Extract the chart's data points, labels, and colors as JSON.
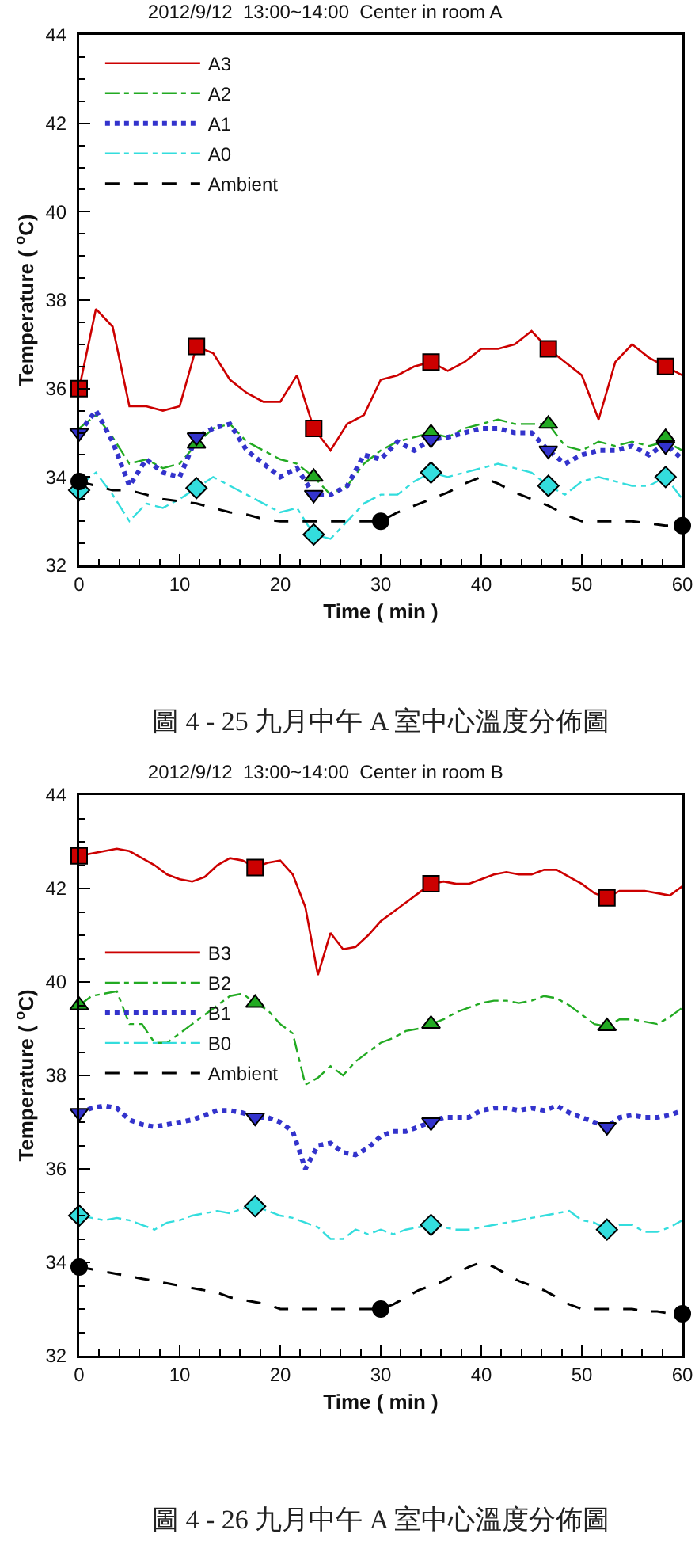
{
  "chart_data": [
    {
      "type": "line",
      "title": "2012/9/12  13:00~14:00  Center in room A",
      "xlabel": "Time ( min )",
      "ylabel": "Temperature ( $^{o}$C)",
      "x": [
        0,
        1.67,
        3.33,
        5,
        6.67,
        8.33,
        10,
        11.67,
        13.33,
        15,
        16.67,
        18.33,
        20,
        21.67,
        23.33,
        25,
        26.67,
        28.33,
        30,
        31.67,
        33.33,
        35,
        36.67,
        38.33,
        40,
        41.67,
        43.33,
        45,
        46.67,
        48.33,
        50,
        51.67,
        53.33,
        55,
        56.67,
        58.33,
        60
      ],
      "series": [
        {
          "name": "A3",
          "color": "#cc0000",
          "line_style": "solid",
          "values": [
            36.0,
            37.8,
            37.4,
            35.6,
            35.6,
            35.5,
            35.6,
            36.95,
            36.8,
            36.2,
            35.9,
            35.7,
            35.7,
            36.3,
            35.1,
            34.6,
            35.2,
            35.4,
            36.2,
            36.3,
            36.5,
            36.6,
            36.4,
            36.6,
            36.9,
            36.9,
            37.0,
            37.3,
            36.9,
            36.6,
            36.3,
            35.3,
            36.6,
            37.0,
            36.7,
            36.5,
            36.3
          ]
        },
        {
          "name": "A2",
          "color": "#22aa22",
          "line_style": "dashdot",
          "values": [
            35.1,
            35.4,
            34.9,
            34.3,
            34.4,
            34.2,
            34.3,
            34.75,
            35.1,
            35.2,
            34.8,
            34.6,
            34.4,
            34.3,
            34.0,
            33.6,
            33.8,
            34.3,
            34.6,
            34.8,
            34.9,
            35.0,
            34.9,
            35.1,
            35.2,
            35.3,
            35.2,
            35.2,
            35.2,
            34.7,
            34.6,
            34.8,
            34.7,
            34.8,
            34.7,
            34.8,
            34.6
          ]
        },
        {
          "name": "A1",
          "color": "#3333cc",
          "line_style": "dotted",
          "values": [
            35.0,
            35.5,
            34.8,
            33.8,
            34.4,
            34.1,
            34.0,
            34.9,
            35.1,
            35.2,
            34.6,
            34.3,
            34.0,
            34.2,
            33.6,
            33.6,
            33.8,
            34.5,
            34.4,
            34.8,
            34.6,
            34.85,
            34.9,
            35.0,
            35.1,
            35.1,
            35.0,
            35.0,
            34.6,
            34.3,
            34.5,
            34.6,
            34.6,
            34.7,
            34.5,
            34.75,
            34.4
          ]
        },
        {
          "name": "A0",
          "color": "#33dddd",
          "line_style": "dashdot",
          "values": [
            33.8,
            34.1,
            33.6,
            33.0,
            33.4,
            33.3,
            33.5,
            33.75,
            34.0,
            33.8,
            33.6,
            33.4,
            33.2,
            33.3,
            32.7,
            32.6,
            33.0,
            33.4,
            33.6,
            33.6,
            33.9,
            34.1,
            34.0,
            34.1,
            34.2,
            34.3,
            34.2,
            34.1,
            33.8,
            33.6,
            33.9,
            34.0,
            33.9,
            33.8,
            33.8,
            34.0,
            33.5
          ]
        },
        {
          "name": "Ambient",
          "color": "#000000",
          "line_style": "dashed",
          "values": [
            33.9,
            33.8,
            33.7,
            33.7,
            33.6,
            33.5,
            33.45,
            33.4,
            33.3,
            33.2,
            33.15,
            33.05,
            33.0,
            33.0,
            33.0,
            33.0,
            33.0,
            33.0,
            33.0,
            33.2,
            33.35,
            33.5,
            33.65,
            33.85,
            34.0,
            33.85,
            33.65,
            33.5,
            33.35,
            33.15,
            33.0,
            33.0,
            33.0,
            33.0,
            32.95,
            32.9,
            32.9
          ]
        },
        {
          "type": "scatter",
          "color": "#cc0000",
          "marker": "square",
          "x": [
            0,
            11.67,
            23.33,
            35,
            46.67,
            58.33
          ],
          "values": [
            36.0,
            36.95,
            35.1,
            36.6,
            36.9,
            36.5
          ]
        },
        {
          "type": "scatter",
          "color": "#22aa22",
          "marker": "triangle",
          "x": [
            11.67,
            23.33,
            35,
            46.67,
            58.33
          ],
          "values": [
            34.75,
            34.0,
            35.0,
            35.2,
            34.9
          ]
        },
        {
          "type": "scatter",
          "color": "#3333cc",
          "marker": "triangle-down",
          "x": [
            0,
            11.67,
            23.33,
            35,
            46.67,
            58.33
          ],
          "values": [
            35.0,
            34.9,
            33.6,
            34.85,
            34.6,
            34.7
          ]
        },
        {
          "type": "scatter",
          "color": "#33dddd",
          "marker": "diamond",
          "x": [
            0,
            11.67,
            23.33,
            35,
            46.67,
            58.33
          ],
          "values": [
            33.7,
            33.75,
            32.7,
            34.1,
            33.8,
            34.0
          ]
        },
        {
          "type": "scatter",
          "color": "#000000",
          "marker": "circle",
          "x": [
            0,
            30,
            60
          ],
          "values": [
            33.9,
            33.0,
            32.9
          ]
        }
      ],
      "xlim": [
        0,
        60
      ],
      "xticks": [
        0,
        10,
        20,
        30,
        40,
        50,
        60
      ],
      "ylim": [
        32,
        44
      ],
      "yticks": [
        32,
        34,
        36,
        38,
        40,
        42,
        44
      ],
      "legend": "top left",
      "grid": false,
      "annotations": [
        "圖 4 - 25 九月中午 A 室中心溫度分佈圖"
      ]
    },
    {
      "type": "line",
      "title": "2012/9/12  13:00~14:00  Center in room B",
      "xlabel": "Time ( min )",
      "ylabel": "Temperature ( $^{o}$C)",
      "x": [
        0,
        1.25,
        2.5,
        3.75,
        5,
        6.25,
        7.5,
        8.75,
        10,
        11.25,
        12.5,
        13.75,
        15,
        16.25,
        17.5,
        18.75,
        20,
        21.25,
        22.5,
        23.75,
        25,
        26.25,
        27.5,
        28.75,
        30,
        31.25,
        32.5,
        33.75,
        35,
        36.25,
        37.5,
        38.75,
        40,
        41.25,
        42.5,
        43.75,
        45,
        46.25,
        47.5,
        48.75,
        50,
        51.25,
        52.5,
        53.75,
        55,
        56.25,
        57.5,
        58.75,
        60
      ],
      "series": [
        {
          "name": "B3",
          "color": "#cc0000",
          "line_style": "solid",
          "values": [
            42.7,
            42.75,
            42.8,
            42.85,
            42.8,
            42.65,
            42.5,
            42.3,
            42.2,
            42.15,
            42.25,
            42.5,
            42.65,
            42.6,
            42.45,
            42.55,
            42.6,
            42.3,
            41.6,
            40.15,
            41.05,
            40.7,
            40.75,
            41.0,
            41.3,
            41.5,
            41.7,
            41.9,
            42.1,
            42.15,
            42.1,
            42.1,
            42.2,
            42.3,
            42.35,
            42.3,
            42.3,
            42.4,
            42.4,
            42.25,
            42.1,
            41.9,
            41.8,
            41.95,
            41.95,
            41.95,
            41.9,
            41.85,
            42.05
          ]
        },
        {
          "name": "B2",
          "color": "#22aa22",
          "line_style": "dashdot",
          "values": [
            39.5,
            39.7,
            39.75,
            39.8,
            39.1,
            39.1,
            38.7,
            38.7,
            38.9,
            39.1,
            39.3,
            39.5,
            39.7,
            39.75,
            39.55,
            39.4,
            39.1,
            38.9,
            37.8,
            37.95,
            38.2,
            38.0,
            38.3,
            38.5,
            38.7,
            38.8,
            38.95,
            39.0,
            39.1,
            39.2,
            39.35,
            39.45,
            39.55,
            39.6,
            39.6,
            39.55,
            39.6,
            39.7,
            39.65,
            39.5,
            39.3,
            39.1,
            39.05,
            39.2,
            39.2,
            39.15,
            39.1,
            39.25,
            39.45
          ]
        },
        {
          "name": "B1",
          "color": "#3333cc",
          "line_style": "dotted",
          "values": [
            37.2,
            37.3,
            37.35,
            37.3,
            37.05,
            36.95,
            36.9,
            36.95,
            37.0,
            37.05,
            37.15,
            37.25,
            37.25,
            37.2,
            37.1,
            37.1,
            37.0,
            36.8,
            36.0,
            36.5,
            36.55,
            36.35,
            36.3,
            36.45,
            36.7,
            36.8,
            36.8,
            36.9,
            37.0,
            37.1,
            37.1,
            37.1,
            37.25,
            37.3,
            37.3,
            37.25,
            37.3,
            37.25,
            37.35,
            37.2,
            37.1,
            37.0,
            36.9,
            37.1,
            37.15,
            37.1,
            37.1,
            37.15,
            37.25
          ]
        },
        {
          "name": "B0",
          "color": "#33dddd",
          "line_style": "dashdot",
          "values": [
            35.0,
            34.95,
            34.9,
            34.95,
            34.9,
            34.8,
            34.7,
            34.85,
            34.9,
            35.0,
            35.05,
            35.1,
            35.05,
            35.15,
            35.2,
            35.1,
            35.0,
            34.95,
            34.85,
            34.75,
            34.5,
            34.5,
            34.7,
            34.6,
            34.7,
            34.6,
            34.7,
            34.75,
            34.8,
            34.75,
            34.7,
            34.7,
            34.75,
            34.8,
            34.85,
            34.9,
            34.95,
            35.0,
            35.05,
            35.1,
            34.9,
            34.85,
            34.7,
            34.8,
            34.8,
            34.65,
            34.65,
            34.75,
            34.9
          ]
        },
        {
          "name": "Ambient",
          "color": "#000000",
          "line_style": "dashed",
          "values": [
            33.9,
            33.85,
            33.8,
            33.75,
            33.7,
            33.65,
            33.6,
            33.55,
            33.5,
            33.45,
            33.4,
            33.35,
            33.25,
            33.2,
            33.15,
            33.1,
            33.0,
            33.0,
            33.0,
            33.0,
            33.0,
            33.0,
            33.0,
            33.0,
            33.0,
            33.1,
            33.25,
            33.4,
            33.5,
            33.6,
            33.75,
            33.9,
            34.0,
            33.9,
            33.75,
            33.6,
            33.5,
            33.4,
            33.25,
            33.1,
            33.0,
            33.0,
            33.0,
            33.0,
            33.0,
            32.95,
            32.95,
            32.9,
            32.9
          ]
        },
        {
          "type": "scatter",
          "color": "#cc0000",
          "marker": "square",
          "x": [
            0,
            17.5,
            35,
            52.5
          ],
          "values": [
            42.7,
            42.45,
            42.1,
            41.8
          ]
        },
        {
          "type": "scatter",
          "color": "#22aa22",
          "marker": "triangle",
          "x": [
            0,
            17.5,
            35,
            52.5
          ],
          "values": [
            39.5,
            39.55,
            39.1,
            39.05
          ]
        },
        {
          "type": "scatter",
          "color": "#3333cc",
          "marker": "triangle-down",
          "x": [
            0,
            17.5,
            35,
            52.5
          ],
          "values": [
            37.2,
            37.1,
            37.0,
            36.9
          ]
        },
        {
          "type": "scatter",
          "color": "#33dddd",
          "marker": "diamond",
          "x": [
            0,
            17.5,
            35,
            52.5
          ],
          "values": [
            35.0,
            35.2,
            34.8,
            34.7
          ]
        },
        {
          "type": "scatter",
          "color": "#000000",
          "marker": "circle",
          "x": [
            0,
            30,
            60
          ],
          "values": [
            33.9,
            33.0,
            32.9
          ]
        }
      ],
      "xlim": [
        0,
        60
      ],
      "xticks": [
        0,
        10,
        20,
        30,
        40,
        50,
        60
      ],
      "ylim": [
        32,
        44
      ],
      "yticks": [
        32,
        34,
        36,
        38,
        40,
        42,
        44
      ],
      "legend": "left",
      "grid": false,
      "annotations": [
        "圖 4 - 26 九月中午 A 室中心溫度分佈圖"
      ]
    }
  ]
}
